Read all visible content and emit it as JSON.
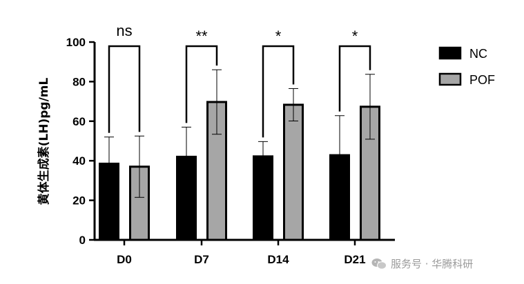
{
  "chart_data": {
    "type": "bar",
    "categories": [
      "D0",
      "D7",
      "D14",
      "D21"
    ],
    "series": [
      {
        "name": "NC",
        "values": [
          38.5,
          42,
          42.2,
          42.8
        ],
        "errors": [
          13.5,
          15,
          7.5,
          20
        ],
        "color": "#000000"
      },
      {
        "name": "POF",
        "values": [
          37,
          69.7,
          68.3,
          67.3
        ],
        "errors": [
          15.5,
          16.3,
          8.2,
          16.4
        ],
        "color": "#a6a6a6"
      }
    ],
    "significance": [
      "ns",
      "**",
      "*",
      "*"
    ],
    "ylabel": "黄体生成素(LH)pg/mL",
    "yticks": [
      0,
      20,
      40,
      60,
      80,
      100
    ],
    "ylim": [
      0,
      100
    ],
    "legend_position": "right"
  },
  "watermark": {
    "text": "服务号 · 华腾科研"
  }
}
